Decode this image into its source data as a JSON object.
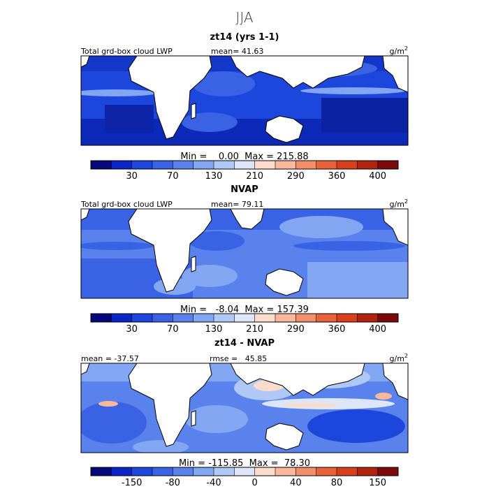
{
  "figure_title": "JJA",
  "chart_data": [
    {
      "type": "heatmap",
      "title": "zt14 (yrs 1-1)",
      "field_label": "Total grd-box cloud LWP",
      "mean_text": "mean=  41.63",
      "mean": 41.63,
      "units": "g/m",
      "units_exp": "2",
      "min": 0.0,
      "max": 215.88,
      "minmax_text": "Min =    0.00  Max = 215.88",
      "colorbar_ticks": [
        "30",
        "70",
        "130",
        "210",
        "290",
        "360",
        "400"
      ],
      "colorbar_colors": [
        "#08087e",
        "#0b26c6",
        "#1d46dc",
        "#3a62e4",
        "#5a82ec",
        "#82a6f2",
        "#b0c8f6",
        "#dce6f8",
        "#fbdccc",
        "#f9b89c",
        "#f48f6c",
        "#e8623a",
        "#d8401d",
        "#b02410",
        "#7d0a0a"
      ]
    },
    {
      "type": "heatmap",
      "title": "NVAP",
      "field_label": "Total grd-box cloud LWP",
      "mean_text": "mean=  79.11",
      "mean": 79.11,
      "units": "g/m",
      "units_exp": "2",
      "min": -8.04,
      "max": 157.39,
      "minmax_text": "Min =   -8.04  Max = 157.39",
      "colorbar_ticks": [
        "30",
        "70",
        "130",
        "210",
        "290",
        "360",
        "400"
      ],
      "colorbar_colors": [
        "#08087e",
        "#0b26c6",
        "#1d46dc",
        "#3a62e4",
        "#5a82ec",
        "#82a6f2",
        "#b0c8f6",
        "#dce6f8",
        "#fbdccc",
        "#f9b89c",
        "#f48f6c",
        "#e8623a",
        "#d8401d",
        "#b02410",
        "#7d0a0a"
      ]
    },
    {
      "type": "heatmap",
      "title": "zt14 - NVAP",
      "mean_text": "mean = -37.57",
      "mean": -37.57,
      "rmse_text": "rmse =   45.85",
      "rmse": 45.85,
      "units": "g/m",
      "units_exp": "2",
      "min": -115.85,
      "max": 78.3,
      "minmax_text": "Min = -115.85  Max =  78.30",
      "colorbar_ticks": [
        "-150",
        "-80",
        "-40",
        "0",
        "40",
        "80",
        "150"
      ],
      "colorbar_colors": [
        "#08087e",
        "#0b26c6",
        "#1d46dc",
        "#3a62e4",
        "#5a82ec",
        "#82a6f2",
        "#b0c8f6",
        "#dce6f8",
        "#fbdccc",
        "#f9b89c",
        "#f48f6c",
        "#e8623a",
        "#d8401d",
        "#b02410",
        "#7d0a0a"
      ]
    }
  ]
}
